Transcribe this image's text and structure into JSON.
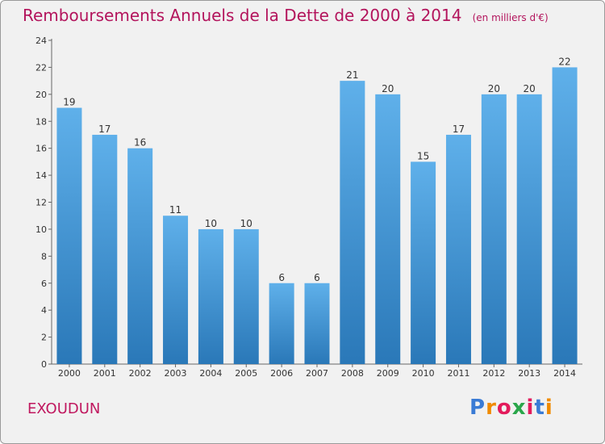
{
  "title": "Remboursements Annuels de la Dette de 2000 à 2014",
  "unit": "(en milliers d'€)",
  "commune": "EXOUDUN",
  "logo": {
    "text": "Proxiti",
    "letter_colors": [
      "#3a7bd5",
      "#f08a00",
      "#e31b5c",
      "#2aa64a",
      "#e31b5c",
      "#3a7bd5",
      "#f08a00"
    ]
  },
  "colors": {
    "title": "#b3145c",
    "bar_top": "#5fb0ea",
    "bar_bottom": "#2a78b8",
    "background": "#f1f1f1"
  },
  "chart_data": {
    "type": "bar",
    "categories": [
      "2000",
      "2001",
      "2002",
      "2003",
      "2004",
      "2005",
      "2006",
      "2007",
      "2008",
      "2009",
      "2010",
      "2011",
      "2012",
      "2013",
      "2014"
    ],
    "values": [
      19,
      17,
      16,
      11,
      10,
      10,
      6,
      6,
      21,
      20,
      15,
      17,
      20,
      20,
      22
    ],
    "ylim": [
      0,
      24
    ],
    "yticks": [
      0,
      2,
      4,
      6,
      8,
      10,
      12,
      14,
      16,
      18,
      20,
      22,
      24
    ],
    "grid": false
  }
}
